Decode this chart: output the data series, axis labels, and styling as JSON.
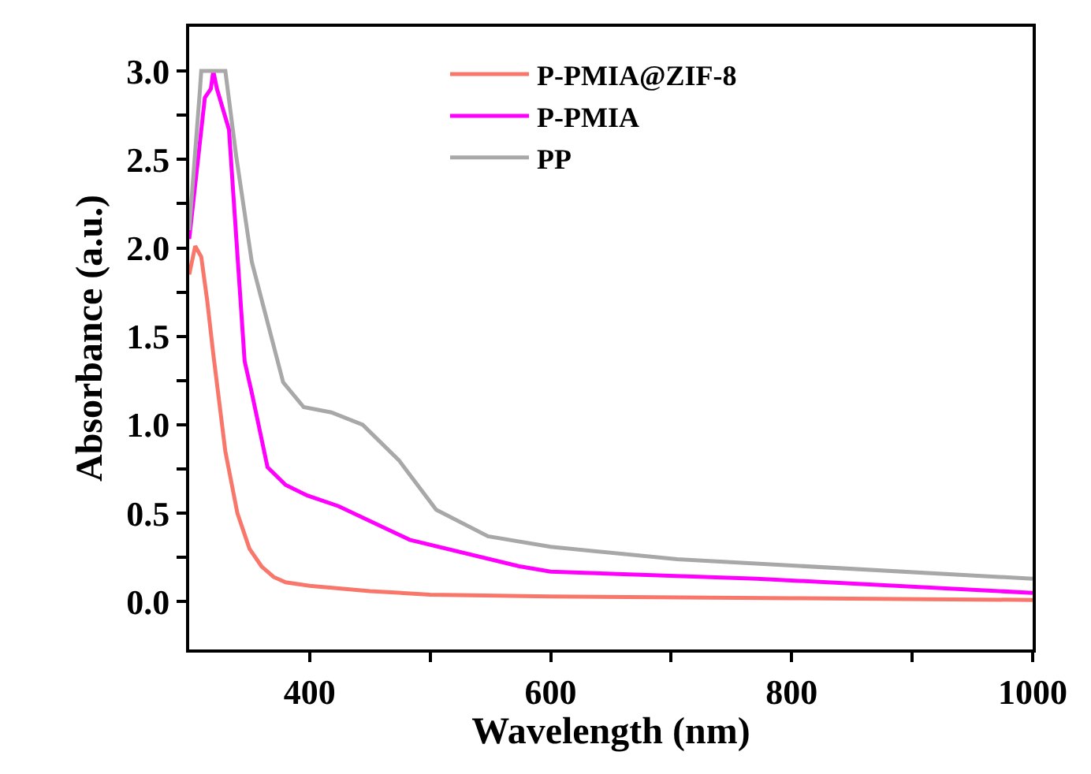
{
  "chart_data": {
    "type": "line",
    "xlabel": "Wavelength (nm)",
    "ylabel": "Absorbance (a.u.)",
    "xlim": [
      300,
      1000
    ],
    "ylim": [
      -0.27,
      3.25
    ],
    "xticks": [
      400,
      {
        "value": 500,
        "label": null
      },
      600,
      {
        "value": 700,
        "label": null
      },
      800,
      {
        "value": 900,
        "label": null
      },
      1000
    ],
    "yticks": [
      {
        "value": 0,
        "label": "0.0"
      },
      {
        "value": 0.25,
        "label": null
      },
      0.5,
      {
        "value": 0.75,
        "label": null
      },
      {
        "value": 1,
        "label": "1.0"
      },
      {
        "value": 1.25,
        "label": null
      },
      1.5,
      {
        "value": 1.75,
        "label": null
      },
      {
        "value": 2,
        "label": "2.0"
      },
      {
        "value": 2.25,
        "label": null
      },
      2.5,
      {
        "value": 2.75,
        "label": null
      },
      {
        "value": 3,
        "label": "3.0"
      }
    ],
    "legend": "top right",
    "line_style": "solid",
    "marker": "none",
    "series": [
      {
        "name": "P-PMIA@ZIF-8",
        "color": "#f8776a",
        "x": [
          300,
          305,
          310,
          315,
          320,
          330,
          340,
          350,
          360,
          370,
          380,
          400,
          450,
          500,
          600,
          800,
          1000
        ],
        "values": [
          1.85,
          2.01,
          1.95,
          1.7,
          1.4,
          0.85,
          0.5,
          0.3,
          0.2,
          0.14,
          0.11,
          0.09,
          0.06,
          0.04,
          0.03,
          0.02,
          0.01
        ]
      },
      {
        "name": "P-PMIA",
        "color": "#ff00ff",
        "x": [
          300,
          313,
          318,
          320,
          323,
          333,
          346,
          352,
          365,
          380,
          398,
          424,
          483,
          574,
          600,
          771,
          1000
        ],
        "values": [
          2.05,
          2.85,
          2.9,
          3.0,
          2.9,
          2.67,
          1.36,
          1.18,
          0.76,
          0.66,
          0.6,
          0.54,
          0.35,
          0.2,
          0.17,
          0.13,
          0.05
        ]
      },
      {
        "name": "PP",
        "color": "#a8a8a8",
        "x": [
          300,
          309,
          310,
          330,
          339,
          352,
          378,
          395,
          418,
          444,
          474,
          505,
          548,
          600,
          705,
          1000
        ],
        "values": [
          2.1,
          2.9,
          3.0,
          3.0,
          2.52,
          1.92,
          1.24,
          1.1,
          1.07,
          1.0,
          0.8,
          0.52,
          0.37,
          0.31,
          0.24,
          0.13
        ]
      }
    ]
  }
}
